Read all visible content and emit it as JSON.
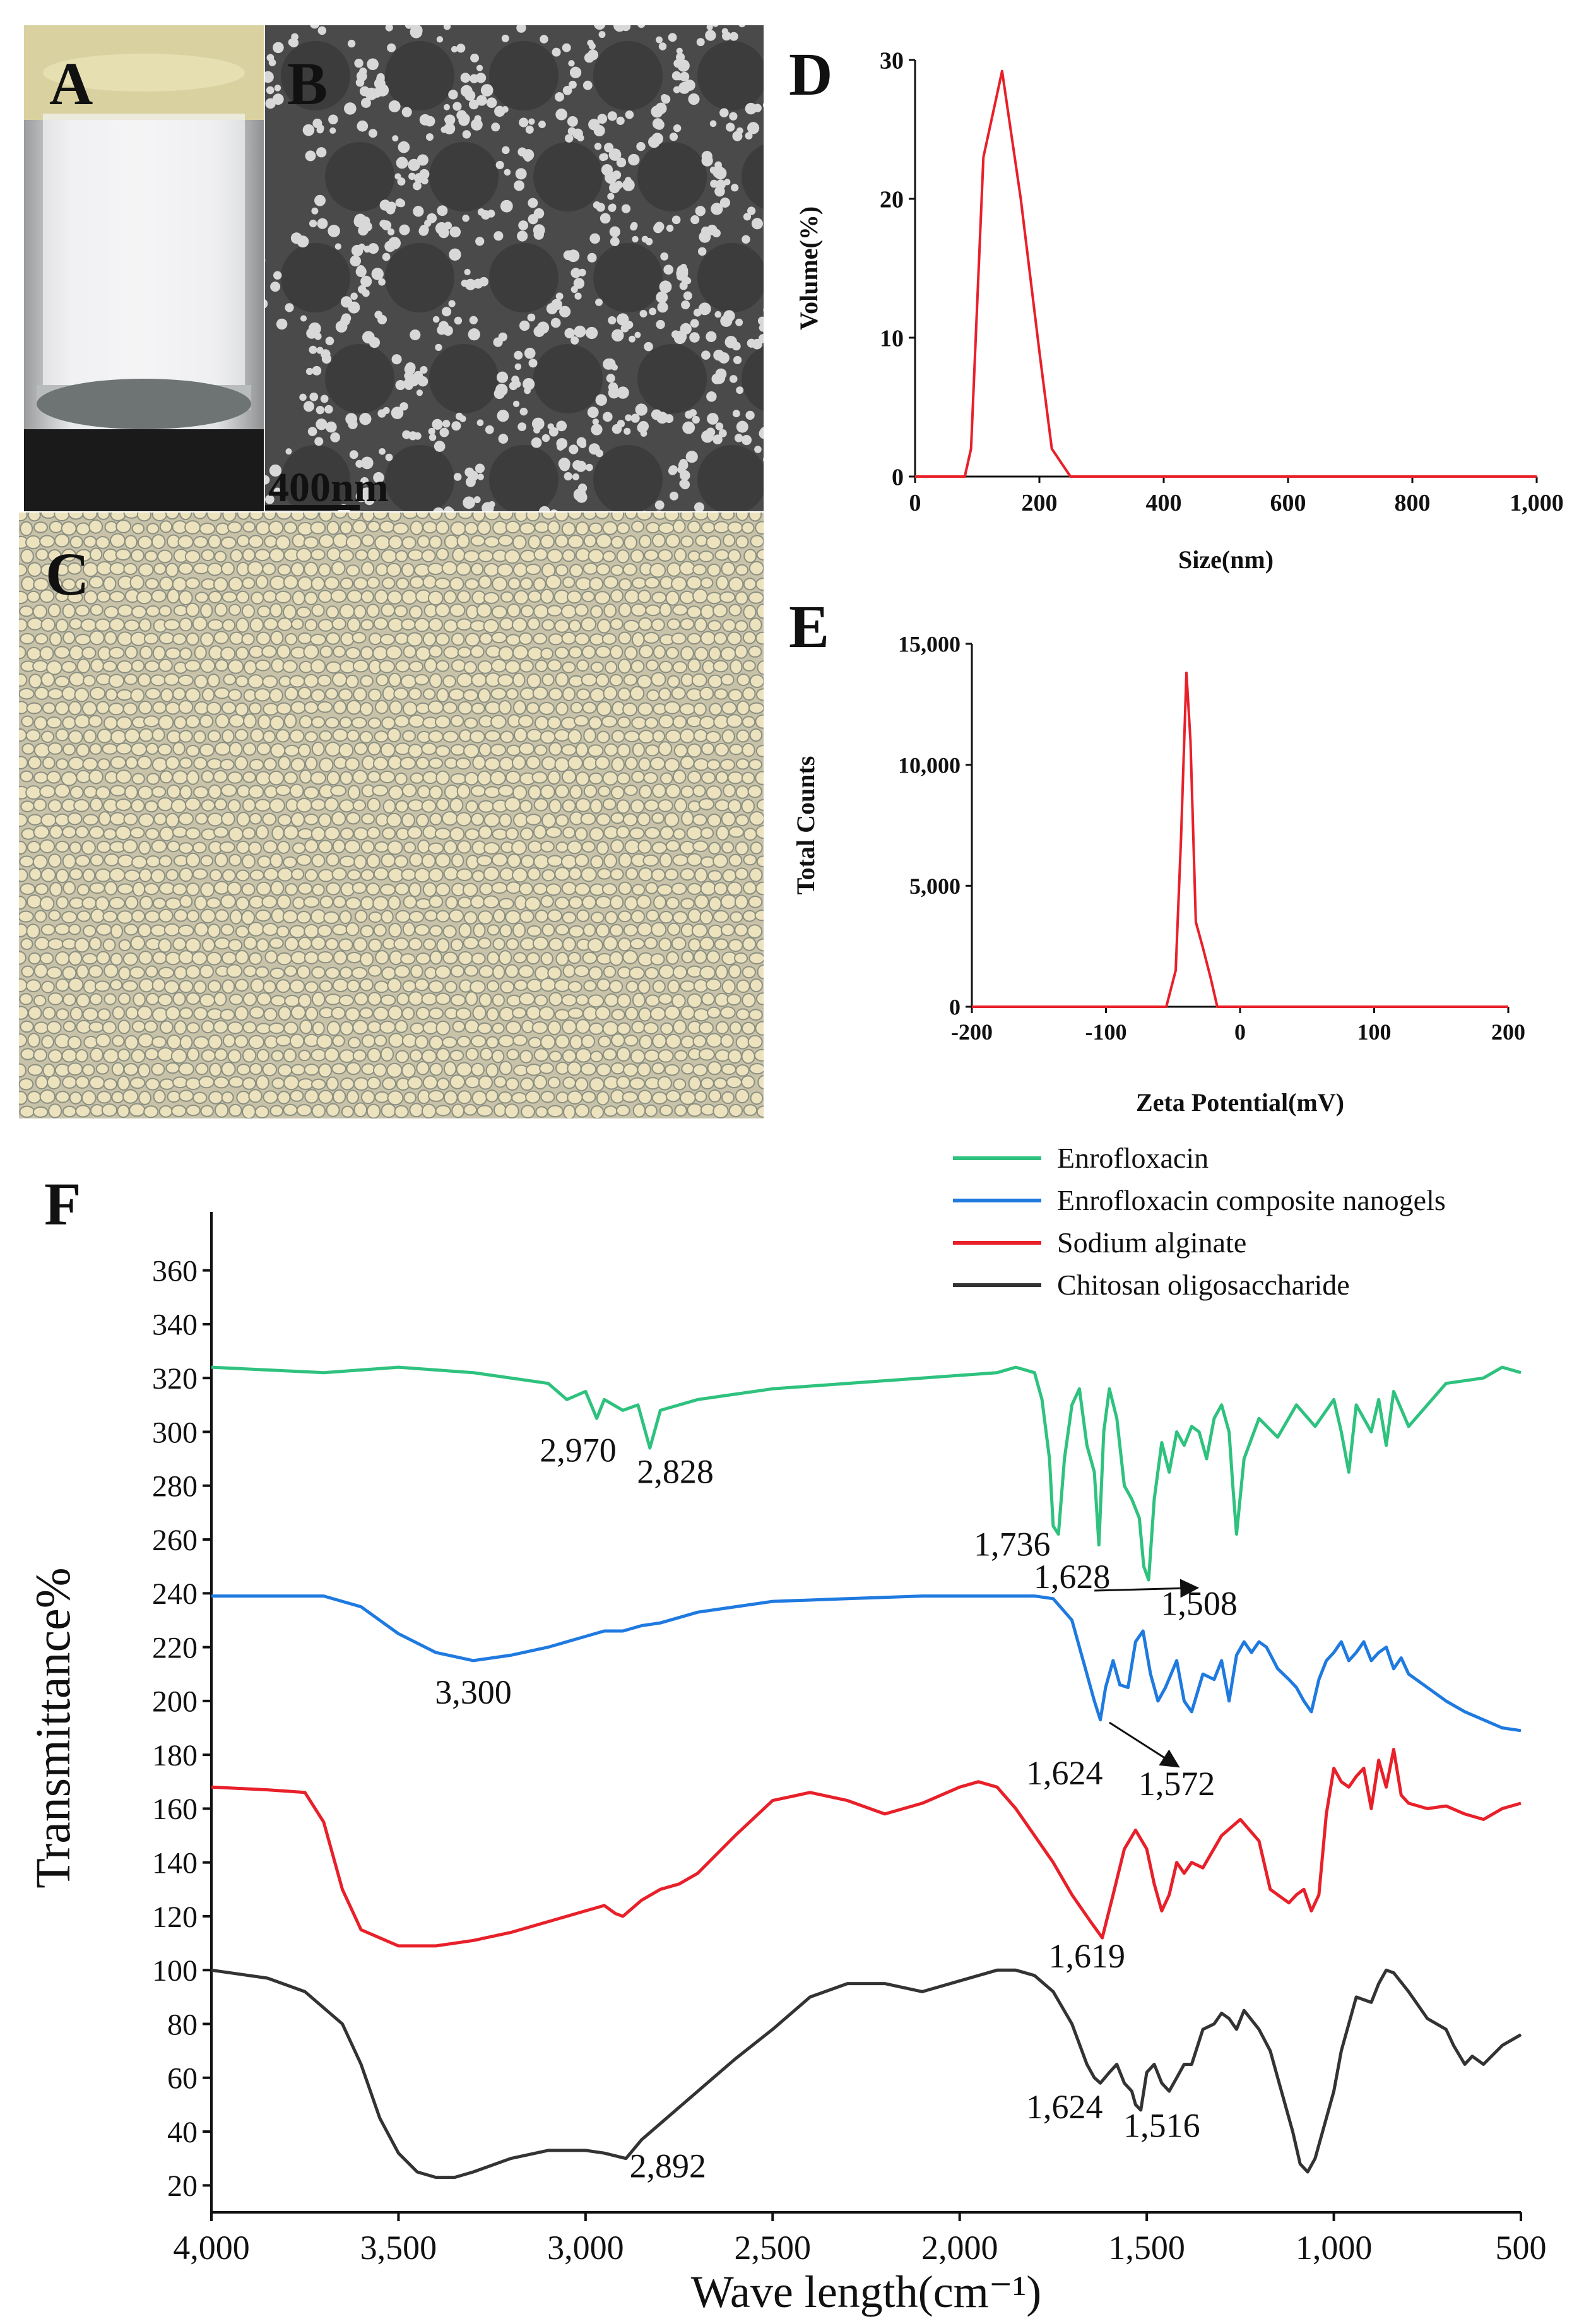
{
  "photo_panels": {
    "A": {
      "letter": "A"
    },
    "B": {
      "letter": "B",
      "scalebar": "400nm"
    },
    "C": {
      "letter": "C"
    }
  },
  "chart_data": [
    {
      "panel": "D",
      "type": "line",
      "xlabel": "Size(nm)",
      "ylabel": "Volume(%)",
      "xlim": [
        0,
        1000
      ],
      "ylim": [
        0,
        30
      ],
      "xticks": [
        "0",
        "200",
        "400",
        "600",
        "800",
        "1,000"
      ],
      "yticks": [
        "0",
        "10",
        "20",
        "30"
      ],
      "color": "#e8202a",
      "series": [
        {
          "x": [
            0,
            80,
            90,
            110,
            140,
            170,
            200,
            220,
            250,
            1000
          ],
          "y": [
            0,
            0,
            2,
            23,
            29.2,
            20,
            9,
            2,
            0,
            0
          ]
        }
      ]
    },
    {
      "panel": "E",
      "type": "line",
      "xlabel": "Zeta Potential(mV)",
      "ylabel": "Total Counts",
      "xlim": [
        -200,
        200
      ],
      "ylim": [
        0,
        15000
      ],
      "xticks": [
        "-200",
        "-100",
        "0",
        "100",
        "200"
      ],
      "yticks": [
        "0",
        "5,000",
        "10,000",
        "15,000"
      ],
      "color": "#e8202a",
      "series": [
        {
          "x": [
            -200,
            -55,
            -48,
            -44,
            -40,
            -37,
            -33,
            -28,
            -22,
            -17,
            200
          ],
          "y": [
            0,
            0,
            1500,
            7000,
            13800,
            11000,
            3500,
            2500,
            1200,
            0,
            0
          ]
        }
      ]
    },
    {
      "panel": "F",
      "type": "line",
      "xlabel": "Wave length(cm⁻¹)",
      "ylabel": "Transmittance%",
      "xlim": [
        4000,
        500
      ],
      "ylim": [
        10,
        370
      ],
      "xticks": [
        "4,000",
        "3,500",
        "3,000",
        "2,500",
        "2,000",
        "1,500",
        "1,000",
        "500"
      ],
      "yticks": [
        "20",
        "40",
        "60",
        "80",
        "100",
        "120",
        "140",
        "160",
        "180",
        "200",
        "220",
        "240",
        "260",
        "280",
        "300",
        "320",
        "340",
        "360"
      ],
      "legend": [
        "Enrofloxacin",
        "Enrofloxacin composite nanogels",
        "Sodium alginate",
        "Chitosan oligosaccharide"
      ],
      "legend_position": "top-right",
      "series": [
        {
          "name": "Enrofloxacin",
          "color": "#2ec27e",
          "x": [
            4000,
            3700,
            3500,
            3300,
            3100,
            3050,
            3000,
            2970,
            2950,
            2900,
            2860,
            2828,
            2800,
            2700,
            2500,
            2300,
            2100,
            1900,
            1850,
            1800,
            1780,
            1760,
            1750,
            1736,
            1720,
            1700,
            1680,
            1660,
            1640,
            1628,
            1615,
            1600,
            1580,
            1560,
            1540,
            1520,
            1508,
            1495,
            1480,
            1460,
            1440,
            1420,
            1400,
            1380,
            1360,
            1340,
            1320,
            1300,
            1280,
            1270,
            1260,
            1240,
            1200,
            1150,
            1100,
            1050,
            1000,
            980,
            960,
            940,
            900,
            880,
            860,
            840,
            800,
            700,
            600,
            550,
            500
          ],
          "y": [
            324,
            322,
            324,
            322,
            318,
            312,
            315,
            305,
            312,
            308,
            310,
            294,
            308,
            312,
            316,
            318,
            320,
            322,
            324,
            322,
            312,
            290,
            265,
            262,
            290,
            310,
            316,
            295,
            285,
            258,
            300,
            316,
            305,
            280,
            275,
            268,
            250,
            245,
            275,
            296,
            285,
            300,
            295,
            302,
            300,
            290,
            305,
            310,
            300,
            280,
            262,
            290,
            305,
            298,
            310,
            302,
            312,
            300,
            285,
            310,
            300,
            312,
            295,
            315,
            302,
            318,
            320,
            324,
            322
          ]
        },
        {
          "name": "Enrofloxacin composite nanogels",
          "color": "#1f7ae0",
          "x": [
            4000,
            3800,
            3700,
            3600,
            3500,
            3400,
            3300,
            3200,
            3100,
            3000,
            2950,
            2900,
            2850,
            2800,
            2700,
            2500,
            2300,
            2100,
            1900,
            1800,
            1750,
            1700,
            1680,
            1660,
            1640,
            1624,
            1610,
            1590,
            1572,
            1550,
            1530,
            1510,
            1490,
            1470,
            1450,
            1420,
            1400,
            1380,
            1350,
            1320,
            1300,
            1280,
            1260,
            1240,
            1220,
            1200,
            1180,
            1150,
            1120,
            1100,
            1080,
            1060,
            1040,
            1020,
            1000,
            980,
            960,
            940,
            920,
            900,
            880,
            860,
            840,
            820,
            800,
            750,
            700,
            650,
            600,
            550,
            500
          ],
          "y": [
            239,
            239,
            239,
            235,
            225,
            218,
            215,
            217,
            220,
            224,
            226,
            226,
            228,
            229,
            233,
            237,
            238,
            239,
            239,
            239,
            238,
            230,
            220,
            210,
            200,
            193,
            205,
            215,
            206,
            205,
            222,
            226,
            210,
            200,
            205,
            215,
            200,
            196,
            210,
            208,
            215,
            200,
            217,
            222,
            218,
            222,
            220,
            212,
            208,
            205,
            200,
            196,
            208,
            215,
            218,
            222,
            215,
            218,
            222,
            215,
            218,
            220,
            212,
            216,
            210,
            205,
            200,
            196,
            193,
            190,
            189
          ]
        },
        {
          "name": "Sodium alginate",
          "color": "#e8202a",
          "x": [
            4000,
            3850,
            3750,
            3700,
            3650,
            3600,
            3500,
            3400,
            3300,
            3200,
            3100,
            3000,
            2950,
            2920,
            2900,
            2850,
            2800,
            2750,
            2700,
            2600,
            2500,
            2400,
            2300,
            2200,
            2100,
            2000,
            1950,
            1900,
            1850,
            1800,
            1750,
            1700,
            1650,
            1619,
            1590,
            1560,
            1530,
            1500,
            1480,
            1460,
            1440,
            1420,
            1400,
            1380,
            1350,
            1300,
            1250,
            1200,
            1170,
            1150,
            1120,
            1100,
            1080,
            1060,
            1040,
            1020,
            1000,
            980,
            960,
            940,
            920,
            900,
            880,
            860,
            840,
            820,
            800,
            750,
            700,
            650,
            600,
            550,
            500
          ],
          "y": [
            168,
            167,
            166,
            155,
            130,
            115,
            109,
            109,
            111,
            114,
            118,
            122,
            124,
            121,
            120,
            126,
            130,
            132,
            136,
            150,
            163,
            166,
            163,
            158,
            162,
            168,
            170,
            168,
            160,
            150,
            140,
            128,
            118,
            112,
            128,
            145,
            152,
            145,
            132,
            122,
            128,
            140,
            136,
            140,
            138,
            150,
            156,
            148,
            130,
            128,
            125,
            128,
            130,
            122,
            128,
            158,
            175,
            170,
            168,
            172,
            175,
            160,
            178,
            168,
            182,
            165,
            162,
            160,
            161,
            158,
            156,
            160,
            162
          ]
        },
        {
          "name": "Chitosan oligosaccharide",
          "color": "#333333",
          "x": [
            4000,
            3850,
            3750,
            3650,
            3600,
            3550,
            3500,
            3450,
            3400,
            3350,
            3300,
            3200,
            3100,
            3000,
            2950,
            2892,
            2850,
            2800,
            2700,
            2600,
            2500,
            2400,
            2300,
            2200,
            2100,
            2000,
            1900,
            1850,
            1800,
            1750,
            1700,
            1660,
            1640,
            1624,
            1600,
            1580,
            1560,
            1540,
            1530,
            1516,
            1500,
            1480,
            1460,
            1440,
            1420,
            1400,
            1380,
            1350,
            1320,
            1300,
            1280,
            1260,
            1240,
            1200,
            1170,
            1150,
            1130,
            1110,
            1090,
            1070,
            1050,
            1030,
            1000,
            980,
            960,
            940,
            900,
            880,
            860,
            840,
            800,
            750,
            700,
            680,
            650,
            630,
            600,
            550,
            500
          ],
          "y": [
            100,
            97,
            92,
            80,
            65,
            45,
            32,
            25,
            23,
            23,
            25,
            30,
            33,
            33,
            32,
            30,
            37,
            43,
            55,
            67,
            78,
            90,
            95,
            95,
            92,
            96,
            100,
            100,
            98,
            92,
            80,
            65,
            60,
            58,
            62,
            65,
            58,
            55,
            50,
            48,
            62,
            65,
            58,
            55,
            60,
            65,
            65,
            78,
            80,
            84,
            82,
            78,
            85,
            78,
            70,
            60,
            50,
            40,
            28,
            25,
            30,
            40,
            55,
            70,
            80,
            90,
            88,
            95,
            100,
            99,
            92,
            82,
            78,
            72,
            65,
            68,
            65,
            72,
            76
          ]
        }
      ],
      "annotations": [
        {
          "text": "2,970",
          "x": 3020,
          "y": 289
        },
        {
          "text": "2,828",
          "x": 2760,
          "y": 281
        },
        {
          "text": "1,736",
          "x": 1860,
          "y": 254
        },
        {
          "text": "1,628",
          "x": 1700,
          "y": 242
        },
        {
          "text": "1,508",
          "x": 1360,
          "y": 232
        },
        {
          "text": "3,300",
          "x": 3300,
          "y": 199
        },
        {
          "text": "1,624",
          "x": 1720,
          "y": 169
        },
        {
          "text": "1,572",
          "x": 1420,
          "y": 165
        },
        {
          "text": "1,619",
          "x": 1660,
          "y": 101
        },
        {
          "text": "1,624",
          "x": 1720,
          "y": 45
        },
        {
          "text": "1,516",
          "x": 1460,
          "y": 38
        },
        {
          "text": "2,892",
          "x": 2780,
          "y": 23
        }
      ],
      "arrows": [
        {
          "from": [
            1640,
            241
          ],
          "to": [
            1370,
            242
          ]
        },
        {
          "from": [
            1600,
            192
          ],
          "to": [
            1420,
            176
          ]
        }
      ]
    }
  ]
}
